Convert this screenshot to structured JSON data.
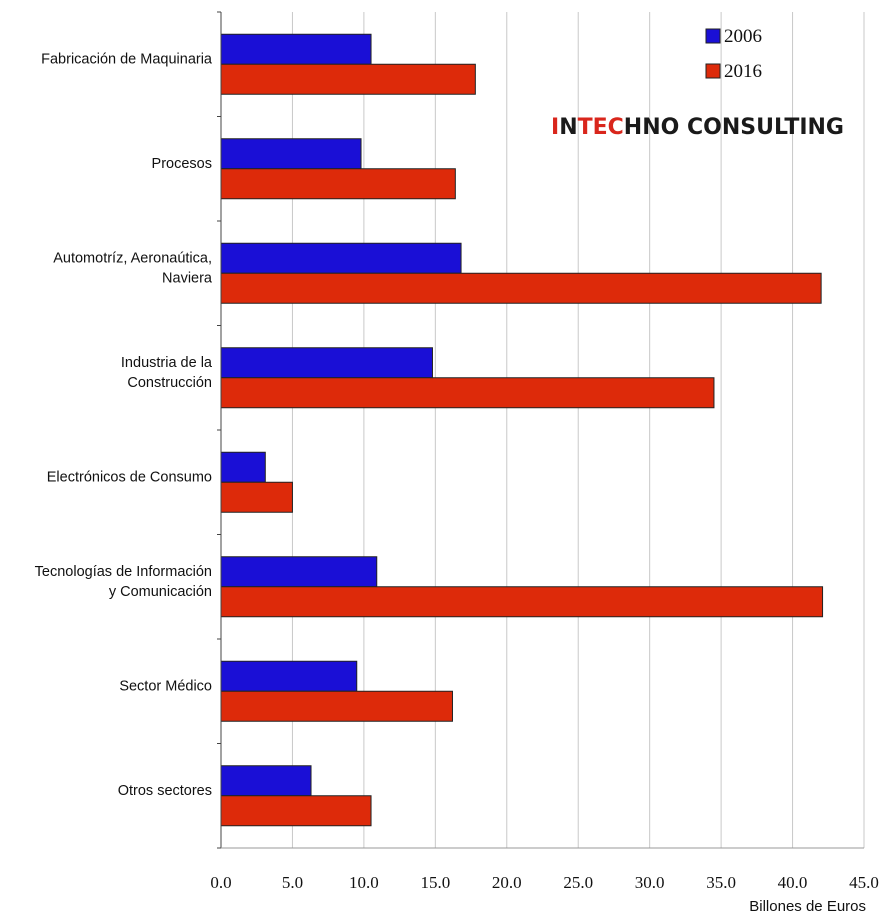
{
  "chart_data": {
    "type": "bar",
    "orientation": "horizontal",
    "categories": [
      [
        "Fabricación de Maquinaria"
      ],
      [
        "Procesos"
      ],
      [
        "Automotríz, Aeronaútica,",
        "Naviera"
      ],
      [
        "Industria de la",
        "Construcción"
      ],
      [
        "Electrónicos de Consumo"
      ],
      [
        "Tecnologías de Información",
        "y Comunicación"
      ],
      [
        "Sector Médico"
      ],
      [
        "Otros sectores"
      ]
    ],
    "series": [
      {
        "name": "2006",
        "color": "#1a0fd6",
        "values": [
          10.5,
          9.8,
          16.8,
          14.8,
          3.1,
          10.9,
          9.5,
          6.3
        ]
      },
      {
        "name": "2016",
        "color": "#dd2a0a",
        "values": [
          17.8,
          16.4,
          42.0,
          34.5,
          5.0,
          42.1,
          16.2,
          10.5
        ]
      }
    ],
    "xlabel": "Billones de Euros",
    "ylabel": "",
    "title": "",
    "xlim": [
      0,
      45
    ],
    "xticks": [
      0,
      5,
      10,
      15,
      20,
      25,
      30,
      35,
      40,
      45
    ],
    "xtick_labels": [
      "0.0",
      "5.0",
      "10.0",
      "15.0",
      "20.0",
      "25.0",
      "30.0",
      "35.0",
      "40.0",
      "45.0"
    ],
    "grid": "vertical",
    "legend": "top-right"
  },
  "brand": {
    "text_red_1": "I",
    "text_dark_1": "N",
    "text_red_2": "TEC",
    "text_dark_2": "HNO CONSULTING",
    "color_red": "#d9261c",
    "color_dark": "#1a1a1a"
  }
}
